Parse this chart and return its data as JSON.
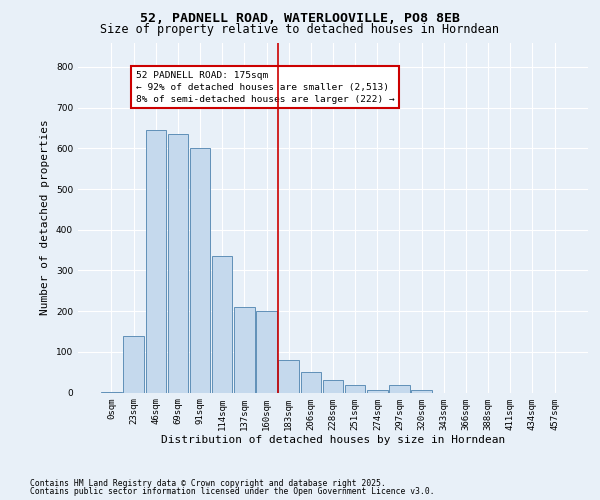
{
  "title_line1": "52, PADNELL ROAD, WATERLOOVILLE, PO8 8EB",
  "title_line2": "Size of property relative to detached houses in Horndean",
  "xlabel": "Distribution of detached houses by size in Horndean",
  "ylabel": "Number of detached properties",
  "categories": [
    "0sqm",
    "23sqm",
    "46sqm",
    "69sqm",
    "91sqm",
    "114sqm",
    "137sqm",
    "160sqm",
    "183sqm",
    "206sqm",
    "228sqm",
    "251sqm",
    "274sqm",
    "297sqm",
    "320sqm",
    "343sqm",
    "366sqm",
    "388sqm",
    "411sqm",
    "434sqm",
    "457sqm"
  ],
  "values": [
    2,
    140,
    645,
    635,
    600,
    335,
    210,
    200,
    80,
    50,
    30,
    18,
    5,
    18,
    5,
    0,
    0,
    0,
    0,
    0,
    0
  ],
  "bar_color": "#c5d9ed",
  "bar_edge_color": "#6090b8",
  "vline_color": "#cc0000",
  "annotation_text": "52 PADNELL ROAD: 175sqm\n← 92% of detached houses are smaller (2,513)\n8% of semi-detached houses are larger (222) →",
  "annotation_box_edge_color": "#cc0000",
  "annotation_bg": "#ffffff",
  "footnote_line1": "Contains HM Land Registry data © Crown copyright and database right 2025.",
  "footnote_line2": "Contains public sector information licensed under the Open Government Licence v3.0.",
  "bg_color": "#e8f0f8",
  "ylim_max": 860,
  "title_fontsize": 9.5,
  "subtitle_fontsize": 8.5,
  "tick_fontsize": 6.5,
  "ylabel_fontsize": 8,
  "xlabel_fontsize": 8,
  "annot_fontsize": 6.8,
  "footnote_fontsize": 5.8
}
